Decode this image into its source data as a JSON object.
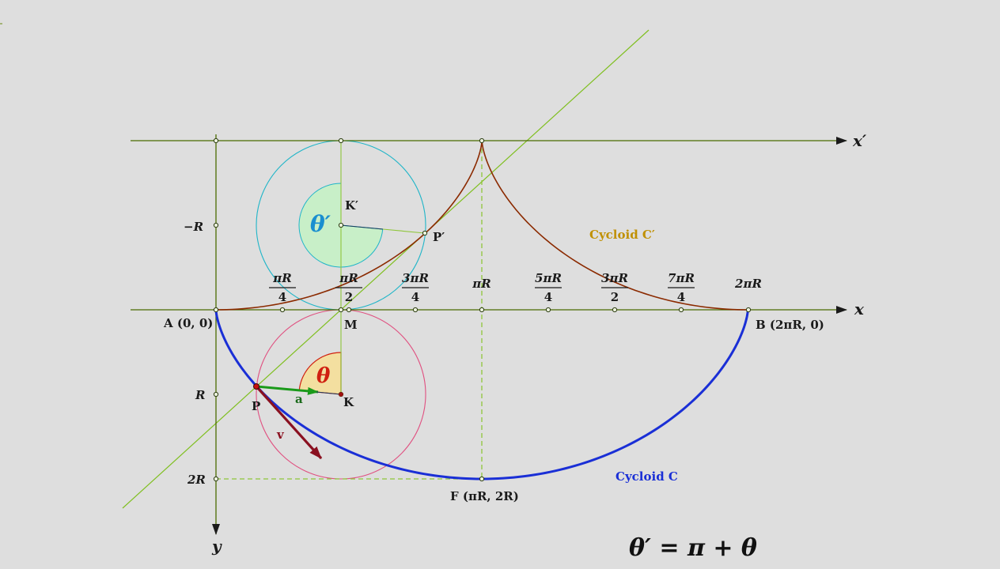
{
  "axes": {
    "x_label": "x",
    "x_prime_label": "x′",
    "y_label": "y"
  },
  "y_ticks": {
    "minus_r": "−R",
    "r": "R",
    "two_r": "2R"
  },
  "x_ticks": [
    {
      "num": "πR",
      "den": "4",
      "kind": "frac"
    },
    {
      "num": "πR",
      "den": "2",
      "kind": "frac"
    },
    {
      "num": "3πR",
      "den": "4",
      "kind": "frac"
    },
    {
      "num": "πR",
      "den": "",
      "kind": "plain"
    },
    {
      "num": "5πR",
      "den": "4",
      "kind": "frac"
    },
    {
      "num": "3πR",
      "den": "2",
      "kind": "frac"
    },
    {
      "num": "7πR",
      "den": "4",
      "kind": "frac"
    },
    {
      "num": "2πR",
      "den": "",
      "kind": "plain"
    }
  ],
  "points": {
    "A": "A (0, 0)",
    "B": "B (2πR, 0)",
    "F": "F (πR, 2R)",
    "M": "M",
    "K": "K",
    "K_prime": "K′",
    "P": "P",
    "P_prime": "P′"
  },
  "vectors": {
    "a": "a",
    "v": "v"
  },
  "angles": {
    "theta": "θ",
    "theta_prime": "θ′"
  },
  "curves": {
    "cycloid_c": "Cycloid C",
    "cycloid_c_prime": "Cycloid C′"
  },
  "formula": "θ′ = π + θ",
  "colors": {
    "background": "#dedede",
    "axis": "#4a6b00",
    "cycloid_c": "#1a2fd6",
    "cycloid_c_prime": "#8b2a00",
    "circle_lower": "#e05080",
    "circle_upper": "#1fb5c8",
    "tangent_line": "#7fbf1f",
    "dashed": "#8fc63a",
    "vector_a": "#1a9a1a",
    "vector_v": "#8a1020",
    "theta": "#d02010",
    "theta_prime": "#1a8fd0"
  }
}
